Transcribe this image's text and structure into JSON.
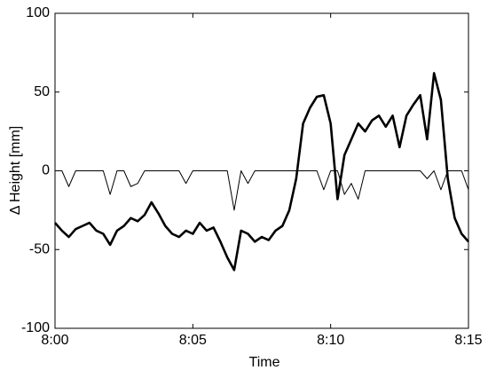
{
  "chart_data": {
    "type": "line",
    "xlabel": "Time",
    "ylabel": "Δ Height [mm]",
    "x": [
      0,
      0.25,
      0.5,
      0.75,
      1,
      1.25,
      1.5,
      1.75,
      2,
      2.25,
      2.5,
      2.75,
      3,
      3.25,
      3.5,
      3.75,
      4,
      4.25,
      4.5,
      4.75,
      5,
      5.25,
      5.5,
      5.75,
      6,
      6.25,
      6.5,
      6.75,
      7,
      7.25,
      7.5,
      7.75,
      8,
      8.25,
      8.5,
      8.75,
      9,
      9.25,
      9.5,
      9.75,
      10,
      10.25,
      10.5,
      10.75,
      11,
      11.25,
      11.5,
      11.75,
      12,
      12.25,
      12.5,
      12.75,
      13,
      13.25,
      13.5,
      13.75,
      14,
      14.25,
      14.5,
      14.75,
      15
    ],
    "series": [
      {
        "color": "#000000",
        "values": [
          -33,
          -38,
          -42,
          -37,
          -35,
          -33,
          -38,
          -40,
          -47,
          -38,
          -35,
          -30,
          -32,
          -28,
          -20,
          -27,
          -35,
          -40,
          -42,
          -38,
          -40,
          -33,
          -38,
          -36,
          -45,
          -55,
          -63,
          -38,
          -40,
          -45,
          -42,
          -44,
          -38,
          -35,
          -25,
          -5,
          30,
          40,
          47,
          48,
          30,
          -18,
          10,
          20,
          30,
          25,
          32,
          35,
          28,
          35,
          15,
          35,
          42,
          48,
          20,
          62,
          45,
          -5,
          -30,
          -40,
          -45
        ]
      },
      {
        "color": "#000000",
        "values": [
          0,
          0,
          -10,
          0,
          0,
          0,
          0,
          0,
          -15,
          0,
          0,
          -10,
          -8,
          0,
          0,
          0,
          0,
          0,
          0,
          -8,
          0,
          0,
          0,
          0,
          0,
          0,
          -25,
          0,
          -8,
          0,
          0,
          0,
          0,
          0,
          0,
          0,
          0,
          0,
          0,
          -12,
          0,
          0,
          -15,
          -8,
          -18,
          0,
          0,
          0,
          0,
          0,
          0,
          0,
          0,
          0,
          -5,
          0,
          -12,
          0,
          0,
          0,
          -12
        ]
      }
    ],
    "xlim": [
      0,
      15
    ],
    "xticks": [
      {
        "value": 0,
        "label": "8:00"
      },
      {
        "value": 5,
        "label": "8:05"
      },
      {
        "value": 10,
        "label": "8:10"
      },
      {
        "value": 15,
        "label": "8:15"
      }
    ],
    "ylim": [
      -100,
      100
    ],
    "yticks": [
      -100,
      -50,
      0,
      50,
      100
    ],
    "grid": false
  }
}
